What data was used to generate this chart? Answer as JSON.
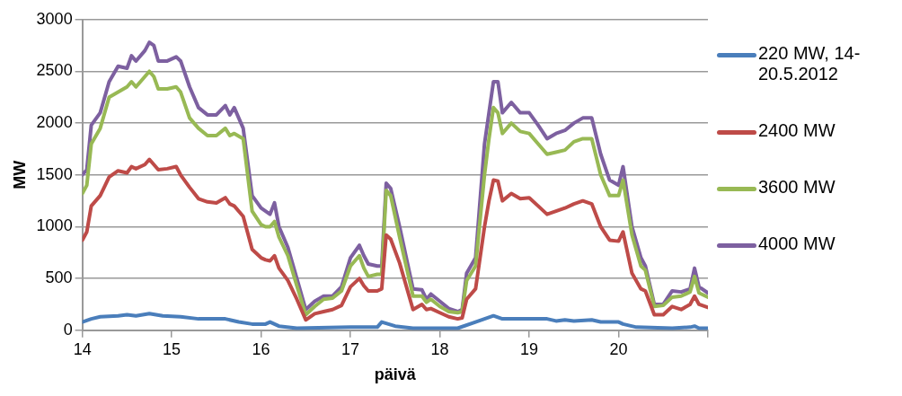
{
  "chart_data": {
    "type": "line",
    "xlabel": "päivä",
    "ylabel": "MW",
    "xlim": [
      14,
      21
    ],
    "xticks": [
      14,
      15,
      16,
      17,
      18,
      19,
      20,
      {
        "value": 21,
        "label": null
      }
    ],
    "ylim": [
      0,
      3000
    ],
    "yticks": [
      0,
      500,
      1000,
      1500,
      2000,
      2500,
      3000
    ],
    "grid": "y",
    "legend": "right",
    "marker": "none",
    "line_style": "solid",
    "x": [
      14.0,
      14.05,
      14.1,
      14.2,
      14.3,
      14.4,
      14.5,
      14.55,
      14.6,
      14.7,
      14.75,
      14.8,
      14.85,
      14.95,
      15.05,
      15.1,
      15.2,
      15.3,
      15.4,
      15.5,
      15.6,
      15.65,
      15.7,
      15.8,
      15.9,
      16.0,
      16.05,
      16.1,
      16.15,
      16.2,
      16.3,
      16.4,
      16.5,
      16.6,
      16.7,
      16.8,
      16.9,
      17.0,
      17.1,
      17.15,
      17.2,
      17.3,
      17.35,
      17.4,
      17.45,
      17.55,
      17.7,
      17.8,
      17.85,
      17.9,
      18.0,
      18.1,
      18.2,
      18.25,
      18.3,
      18.4,
      18.5,
      18.55,
      18.6,
      18.65,
      18.7,
      18.8,
      18.9,
      19.0,
      19.1,
      19.2,
      19.3,
      19.4,
      19.5,
      19.6,
      19.7,
      19.8,
      19.9,
      20.0,
      20.05,
      20.15,
      20.25,
      20.3,
      20.4,
      20.5,
      20.6,
      20.7,
      20.8,
      20.85,
      20.9,
      21.0
    ],
    "series": [
      {
        "name": "220 MW, 14-20.5.2012",
        "color": "#4a7ebb",
        "x": [
          14.0,
          14.1,
          14.2,
          14.4,
          14.5,
          14.6,
          14.75,
          14.9,
          15.1,
          15.3,
          15.6,
          15.75,
          15.9,
          16.05,
          16.1,
          16.2,
          16.4,
          17.0,
          17.3,
          17.35,
          17.5,
          17.7,
          18.2,
          18.4,
          18.6,
          18.7,
          19.0,
          19.2,
          19.3,
          19.4,
          19.5,
          19.7,
          19.8,
          20.0,
          20.05,
          20.2,
          20.6,
          20.8,
          20.85,
          20.9,
          21.0
        ],
        "values": [
          80,
          110,
          130,
          140,
          150,
          140,
          160,
          140,
          130,
          110,
          110,
          80,
          60,
          60,
          80,
          40,
          20,
          30,
          30,
          80,
          40,
          20,
          20,
          80,
          140,
          110,
          110,
          110,
          90,
          100,
          90,
          100,
          80,
          80,
          60,
          30,
          20,
          30,
          40,
          20,
          20
        ]
      },
      {
        "name": "2400 MW",
        "color": "#be4b48",
        "values": [
          870,
          950,
          1200,
          1300,
          1480,
          1540,
          1520,
          1580,
          1560,
          1600,
          1650,
          1600,
          1550,
          1560,
          1580,
          1500,
          1380,
          1270,
          1240,
          1230,
          1280,
          1220,
          1200,
          1100,
          780,
          700,
          680,
          670,
          720,
          600,
          480,
          300,
          100,
          160,
          180,
          200,
          240,
          420,
          500,
          430,
          380,
          380,
          400,
          920,
          880,
          650,
          200,
          250,
          200,
          210,
          170,
          130,
          110,
          120,
          300,
          400,
          1000,
          1250,
          1450,
          1440,
          1250,
          1320,
          1270,
          1280,
          1200,
          1120,
          1150,
          1180,
          1220,
          1250,
          1220,
          1000,
          870,
          860,
          950,
          550,
          400,
          380,
          150,
          150,
          230,
          200,
          250,
          330,
          250,
          220
        ]
      },
      {
        "name": "3600 MW",
        "color": "#98b954",
        "values": [
          1320,
          1400,
          1800,
          1950,
          2250,
          2300,
          2350,
          2400,
          2350,
          2450,
          2500,
          2450,
          2330,
          2330,
          2350,
          2300,
          2050,
          1950,
          1880,
          1880,
          1950,
          1880,
          1900,
          1850,
          1150,
          1020,
          1000,
          1000,
          1050,
          900,
          720,
          430,
          150,
          230,
          300,
          310,
          380,
          620,
          720,
          600,
          520,
          540,
          540,
          1350,
          1300,
          900,
          330,
          330,
          270,
          300,
          230,
          180,
          170,
          180,
          480,
          620,
          1500,
          1850,
          2150,
          2100,
          1900,
          2000,
          1920,
          1900,
          1800,
          1700,
          1720,
          1740,
          1820,
          1850,
          1850,
          1500,
          1300,
          1300,
          1450,
          920,
          620,
          580,
          230,
          240,
          320,
          330,
          370,
          520,
          360,
          320
        ]
      },
      {
        "name": "4000 MW",
        "color": "#7d60a0",
        "values": [
          1500,
          1550,
          1980,
          2100,
          2400,
          2550,
          2530,
          2650,
          2600,
          2700,
          2780,
          2750,
          2600,
          2600,
          2640,
          2600,
          2350,
          2150,
          2080,
          2080,
          2170,
          2080,
          2150,
          1950,
          1300,
          1180,
          1150,
          1120,
          1230,
          1000,
          800,
          500,
          200,
          280,
          330,
          330,
          420,
          700,
          820,
          720,
          640,
          620,
          620,
          1420,
          1370,
          1000,
          400,
          390,
          300,
          350,
          280,
          210,
          180,
          200,
          550,
          700,
          1800,
          2100,
          2400,
          2400,
          2100,
          2200,
          2100,
          2100,
          1980,
          1850,
          1900,
          1930,
          2000,
          2050,
          2050,
          1700,
          1450,
          1400,
          1580,
          1000,
          700,
          620,
          250,
          250,
          380,
          370,
          400,
          600,
          420,
          360
        ]
      }
    ]
  }
}
